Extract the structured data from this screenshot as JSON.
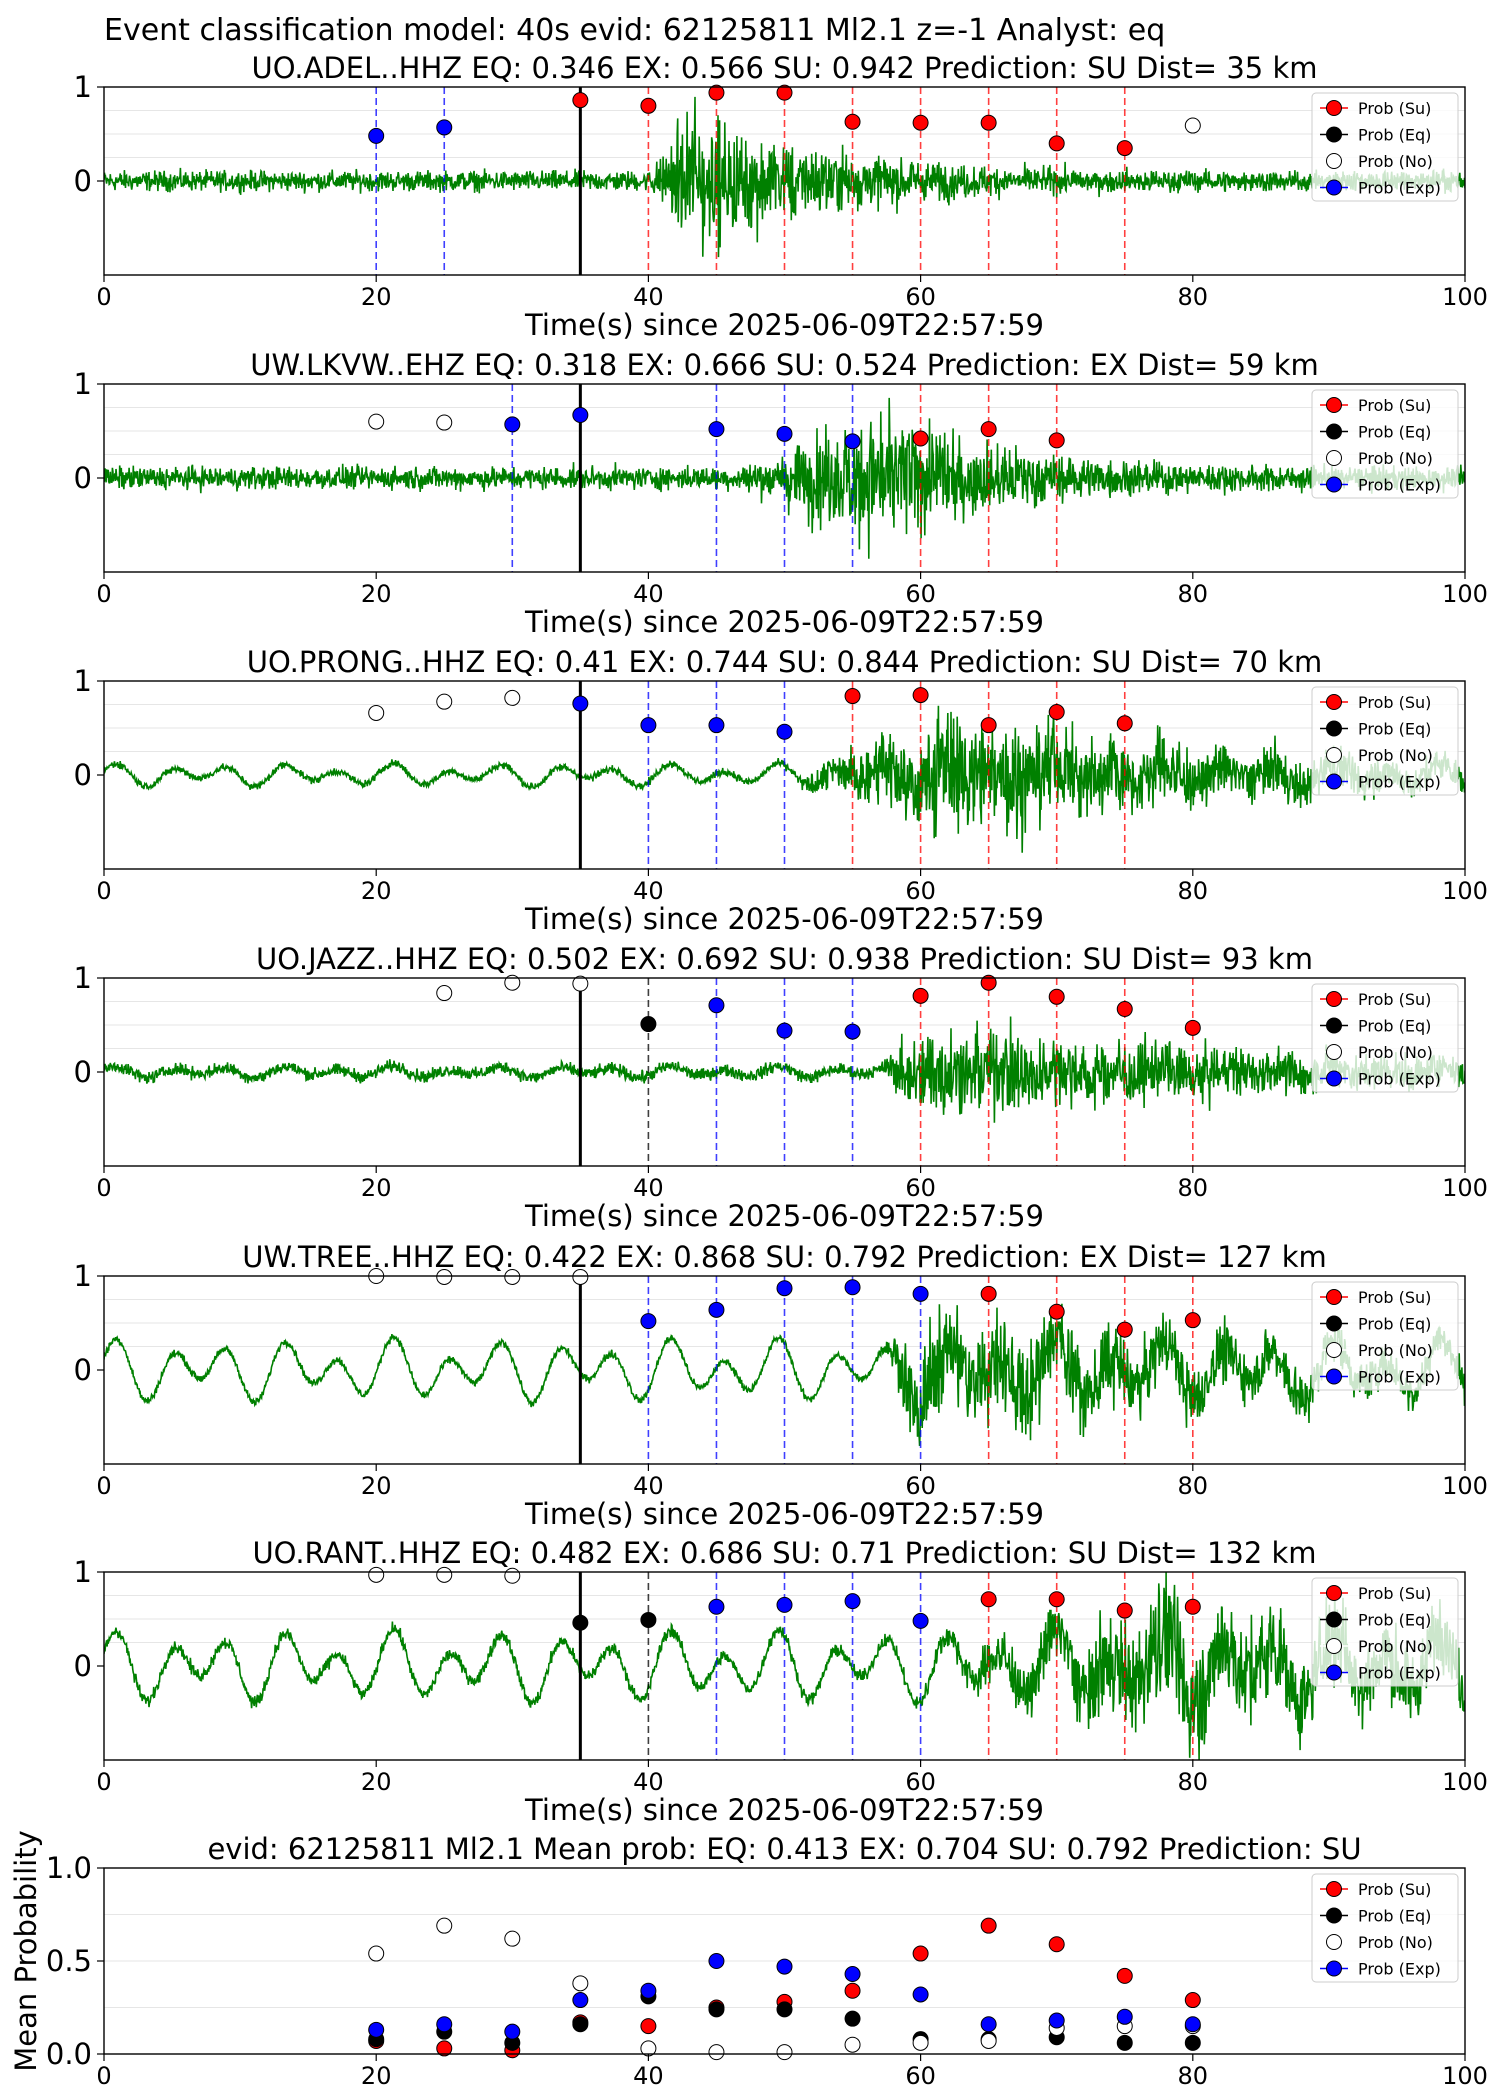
{
  "suptitle": "Event classification model: 40s evid: 62125811 Ml2.1 z=-1 Analyst: eq",
  "colors": {
    "su": "#ff0000",
    "eq": "#000000",
    "no": "#ffffff",
    "exp": "#0000ff",
    "waveform": "#008000"
  },
  "legend": {
    "position": "upper-right",
    "items": [
      {
        "label": "Prob (Su)",
        "class": "su"
      },
      {
        "label": "Prob (Eq)",
        "class": "eq"
      },
      {
        "label": "Prob (No)",
        "class": "no"
      },
      {
        "label": "Prob (Exp)",
        "class": "exp"
      }
    ]
  },
  "chart_data": [
    {
      "type": "scatter",
      "title": "UO.ADEL..HHZ   EQ: 0.346  EX: 0.566  SU: 0.942   Prediction: SU    Dist= 35 km",
      "xlabel": "Time(s) since 2025-06-09T22:57:59",
      "xlim": [
        0,
        100
      ],
      "x_ticks": [
        0,
        20,
        40,
        60,
        80,
        100
      ],
      "y_ticks": [
        0,
        1
      ],
      "origin_line_x": 35,
      "waveform": {
        "onset": 40,
        "peak_time": 43,
        "noise": 0.08,
        "amp": 1.05,
        "decay": 12,
        "low_freq": 0,
        "style": "noisy"
      },
      "points": [
        {
          "x": 20,
          "y": 0.48,
          "class": "exp"
        },
        {
          "x": 25,
          "y": 0.57,
          "class": "exp"
        },
        {
          "x": 35,
          "y": 0.86,
          "class": "su"
        },
        {
          "x": 40,
          "y": 0.8,
          "class": "su"
        },
        {
          "x": 45,
          "y": 0.94,
          "class": "su"
        },
        {
          "x": 50,
          "y": 0.94,
          "class": "su"
        },
        {
          "x": 55,
          "y": 0.63,
          "class": "su"
        },
        {
          "x": 60,
          "y": 0.62,
          "class": "su"
        },
        {
          "x": 65,
          "y": 0.62,
          "class": "su"
        },
        {
          "x": 70,
          "y": 0.4,
          "class": "su"
        },
        {
          "x": 75,
          "y": 0.35,
          "class": "su"
        },
        {
          "x": 80,
          "y": 0.59,
          "class": "no"
        }
      ]
    },
    {
      "type": "scatter",
      "title": "UW.LKVW..EHZ   EQ: 0.318  EX: 0.666  SU: 0.524   Prediction: EX    Dist= 59 km",
      "xlabel": "Time(s) since 2025-06-09T22:57:59",
      "xlim": [
        0,
        100
      ],
      "x_ticks": [
        0,
        20,
        40,
        60,
        80,
        100
      ],
      "y_ticks": [
        0,
        1
      ],
      "origin_line_x": 35,
      "waveform": {
        "onset": 46,
        "peak_time": 56,
        "noise": 0.09,
        "amp": 1.0,
        "decay": 12,
        "low_freq": 0,
        "style": "noisy"
      },
      "points": [
        {
          "x": 20,
          "y": 0.6,
          "class": "no"
        },
        {
          "x": 25,
          "y": 0.59,
          "class": "no"
        },
        {
          "x": 30,
          "y": 0.57,
          "class": "exp"
        },
        {
          "x": 35,
          "y": 0.67,
          "class": "exp"
        },
        {
          "x": 45,
          "y": 0.52,
          "class": "exp"
        },
        {
          "x": 50,
          "y": 0.47,
          "class": "exp"
        },
        {
          "x": 55,
          "y": 0.39,
          "class": "exp"
        },
        {
          "x": 60,
          "y": 0.42,
          "class": "su"
        },
        {
          "x": 65,
          "y": 0.52,
          "class": "su"
        },
        {
          "x": 70,
          "y": 0.4,
          "class": "su"
        }
      ]
    },
    {
      "type": "scatter",
      "title": "UO.PRONG..HHZ   EQ: 0.41  EX: 0.744  SU: 0.844   Prediction: SU    Dist= 70 km",
      "xlabel": "Time(s) since 2025-06-09T22:57:59",
      "xlim": [
        0,
        100
      ],
      "x_ticks": [
        0,
        20,
        40,
        60,
        80,
        100
      ],
      "y_ticks": [
        0,
        1
      ],
      "origin_line_x": 35,
      "waveform": {
        "onset": 50,
        "peak_time": 62,
        "noise": 0.03,
        "amp": 0.9,
        "decay": 25,
        "low_freq": 0.08,
        "style": "wavy"
      },
      "points": [
        {
          "x": 20,
          "y": 0.66,
          "class": "no"
        },
        {
          "x": 25,
          "y": 0.78,
          "class": "no"
        },
        {
          "x": 30,
          "y": 0.82,
          "class": "no"
        },
        {
          "x": 35,
          "y": 0.76,
          "class": "exp"
        },
        {
          "x": 40,
          "y": 0.53,
          "class": "exp"
        },
        {
          "x": 45,
          "y": 0.53,
          "class": "exp"
        },
        {
          "x": 50,
          "y": 0.46,
          "class": "exp"
        },
        {
          "x": 55,
          "y": 0.84,
          "class": "su"
        },
        {
          "x": 60,
          "y": 0.85,
          "class": "su"
        },
        {
          "x": 65,
          "y": 0.53,
          "class": "su"
        },
        {
          "x": 70,
          "y": 0.67,
          "class": "su"
        },
        {
          "x": 75,
          "y": 0.55,
          "class": "su"
        }
      ]
    },
    {
      "type": "scatter",
      "title": "UO.JAZZ..HHZ   EQ: 0.502  EX: 0.692  SU: 0.938   Prediction: SU    Dist= 93 km",
      "xlabel": "Time(s) since 2025-06-09T22:57:59",
      "xlim": [
        0,
        100
      ],
      "x_ticks": [
        0,
        20,
        40,
        60,
        80,
        100
      ],
      "y_ticks": [
        0,
        1
      ],
      "origin_line_x": 35,
      "waveform": {
        "onset": 57,
        "peak_time": 60,
        "noise": 0.05,
        "amp": 0.75,
        "decay": 30,
        "low_freq": 0.04,
        "style": "wavy"
      },
      "points": [
        {
          "x": 25,
          "y": 0.84,
          "class": "no"
        },
        {
          "x": 30,
          "y": 0.95,
          "class": "no"
        },
        {
          "x": 35,
          "y": 0.94,
          "class": "no"
        },
        {
          "x": 40,
          "y": 0.51,
          "class": "eq"
        },
        {
          "x": 45,
          "y": 0.71,
          "class": "exp"
        },
        {
          "x": 50,
          "y": 0.44,
          "class": "exp"
        },
        {
          "x": 55,
          "y": 0.43,
          "class": "exp"
        },
        {
          "x": 60,
          "y": 0.81,
          "class": "su"
        },
        {
          "x": 65,
          "y": 0.95,
          "class": "su"
        },
        {
          "x": 70,
          "y": 0.8,
          "class": "su"
        },
        {
          "x": 75,
          "y": 0.67,
          "class": "su"
        },
        {
          "x": 80,
          "y": 0.47,
          "class": "su"
        }
      ]
    },
    {
      "type": "scatter",
      "title": "UW.TREE..HHZ   EQ: 0.422  EX: 0.868  SU: 0.792   Prediction: EX    Dist= 127 km",
      "xlabel": "Time(s) since 2025-06-09T22:57:59",
      "xlim": [
        0,
        100
      ],
      "x_ticks": [
        0,
        20,
        40,
        60,
        80,
        100
      ],
      "y_ticks": [
        0,
        1
      ],
      "origin_line_x": 35,
      "waveform": {
        "onset": 57,
        "peak_time": 60,
        "noise": 0.03,
        "amp": 0.8,
        "decay": 35,
        "low_freq": 0.22,
        "style": "wavy"
      },
      "points": [
        {
          "x": 20,
          "y": 1.0,
          "class": "no"
        },
        {
          "x": 25,
          "y": 0.99,
          "class": "no"
        },
        {
          "x": 30,
          "y": 0.99,
          "class": "no"
        },
        {
          "x": 35,
          "y": 0.99,
          "class": "no"
        },
        {
          "x": 40,
          "y": 0.52,
          "class": "exp"
        },
        {
          "x": 45,
          "y": 0.64,
          "class": "exp"
        },
        {
          "x": 50,
          "y": 0.87,
          "class": "exp"
        },
        {
          "x": 55,
          "y": 0.88,
          "class": "exp"
        },
        {
          "x": 60,
          "y": 0.81,
          "class": "exp"
        },
        {
          "x": 65,
          "y": 0.81,
          "class": "su"
        },
        {
          "x": 70,
          "y": 0.62,
          "class": "su"
        },
        {
          "x": 75,
          "y": 0.43,
          "class": "su"
        },
        {
          "x": 80,
          "y": 0.53,
          "class": "su"
        }
      ]
    },
    {
      "type": "scatter",
      "title": "UO.RANT..HHZ   EQ: 0.482  EX: 0.686  SU: 0.71   Prediction: SU    Dist= 132 km",
      "xlabel": "Time(s) since 2025-06-09T22:57:59",
      "xlim": [
        0,
        100
      ],
      "x_ticks": [
        0,
        20,
        40,
        60,
        80,
        100
      ],
      "y_ticks": [
        0,
        1
      ],
      "origin_line_x": 35,
      "waveform": {
        "onset": 58,
        "peak_time": 78,
        "noise": 0.05,
        "amp": 0.85,
        "decay": 40,
        "low_freq": 0.25,
        "style": "wavy"
      },
      "points": [
        {
          "x": 20,
          "y": 0.97,
          "class": "no"
        },
        {
          "x": 25,
          "y": 0.97,
          "class": "no"
        },
        {
          "x": 30,
          "y": 0.96,
          "class": "no"
        },
        {
          "x": 35,
          "y": 0.46,
          "class": "eq"
        },
        {
          "x": 40,
          "y": 0.49,
          "class": "eq"
        },
        {
          "x": 45,
          "y": 0.63,
          "class": "exp"
        },
        {
          "x": 50,
          "y": 0.65,
          "class": "exp"
        },
        {
          "x": 55,
          "y": 0.69,
          "class": "exp"
        },
        {
          "x": 60,
          "y": 0.48,
          "class": "exp"
        },
        {
          "x": 65,
          "y": 0.71,
          "class": "su"
        },
        {
          "x": 70,
          "y": 0.71,
          "class": "su"
        },
        {
          "x": 75,
          "y": 0.59,
          "class": "su"
        },
        {
          "x": 80,
          "y": 0.63,
          "class": "su"
        }
      ]
    },
    {
      "type": "scatter",
      "title": "evid: 62125811   Ml2.1    Mean prob:    EQ: 0.413   EX: 0.704   SU: 0.792    Prediction: SU",
      "ylabel": "Mean Probability",
      "xlim": [
        0,
        100
      ],
      "x_ticks": [
        0,
        20,
        40,
        60,
        80,
        100
      ],
      "ylim": [
        0,
        1
      ],
      "y_ticks": [
        "0.0",
        "0.5",
        "1.0"
      ],
      "series": [
        {
          "name": "Prob (Su)",
          "class": "su",
          "x": [
            20,
            25,
            30,
            35,
            40,
            45,
            50,
            55,
            60,
            65,
            70,
            75,
            80
          ],
          "values": [
            0.07,
            0.03,
            0.02,
            0.17,
            0.15,
            0.25,
            0.28,
            0.34,
            0.54,
            0.69,
            0.59,
            0.42,
            0.29
          ]
        },
        {
          "name": "Prob (Eq)",
          "class": "eq",
          "x": [
            20,
            25,
            30,
            35,
            40,
            45,
            50,
            55,
            60,
            65,
            70,
            75,
            80
          ],
          "values": [
            0.08,
            0.12,
            0.06,
            0.16,
            0.31,
            0.24,
            0.24,
            0.19,
            0.08,
            0.08,
            0.09,
            0.06,
            0.06
          ]
        },
        {
          "name": "Prob (No)",
          "class": "no",
          "x": [
            20,
            25,
            30,
            35,
            40,
            45,
            50,
            55,
            60,
            65,
            70,
            75,
            80
          ],
          "values": [
            0.54,
            0.69,
            0.62,
            0.38,
            0.03,
            0.01,
            0.01,
            0.05,
            0.06,
            0.07,
            0.14,
            0.15,
            0.15
          ]
        },
        {
          "name": "Prob (Exp)",
          "class": "exp",
          "x": [
            20,
            25,
            30,
            35,
            40,
            45,
            50,
            55,
            60,
            65,
            70,
            75,
            80
          ],
          "values": [
            0.13,
            0.16,
            0.12,
            0.29,
            0.34,
            0.5,
            0.47,
            0.43,
            0.32,
            0.16,
            0.18,
            0.2,
            0.16
          ]
        }
      ]
    }
  ]
}
